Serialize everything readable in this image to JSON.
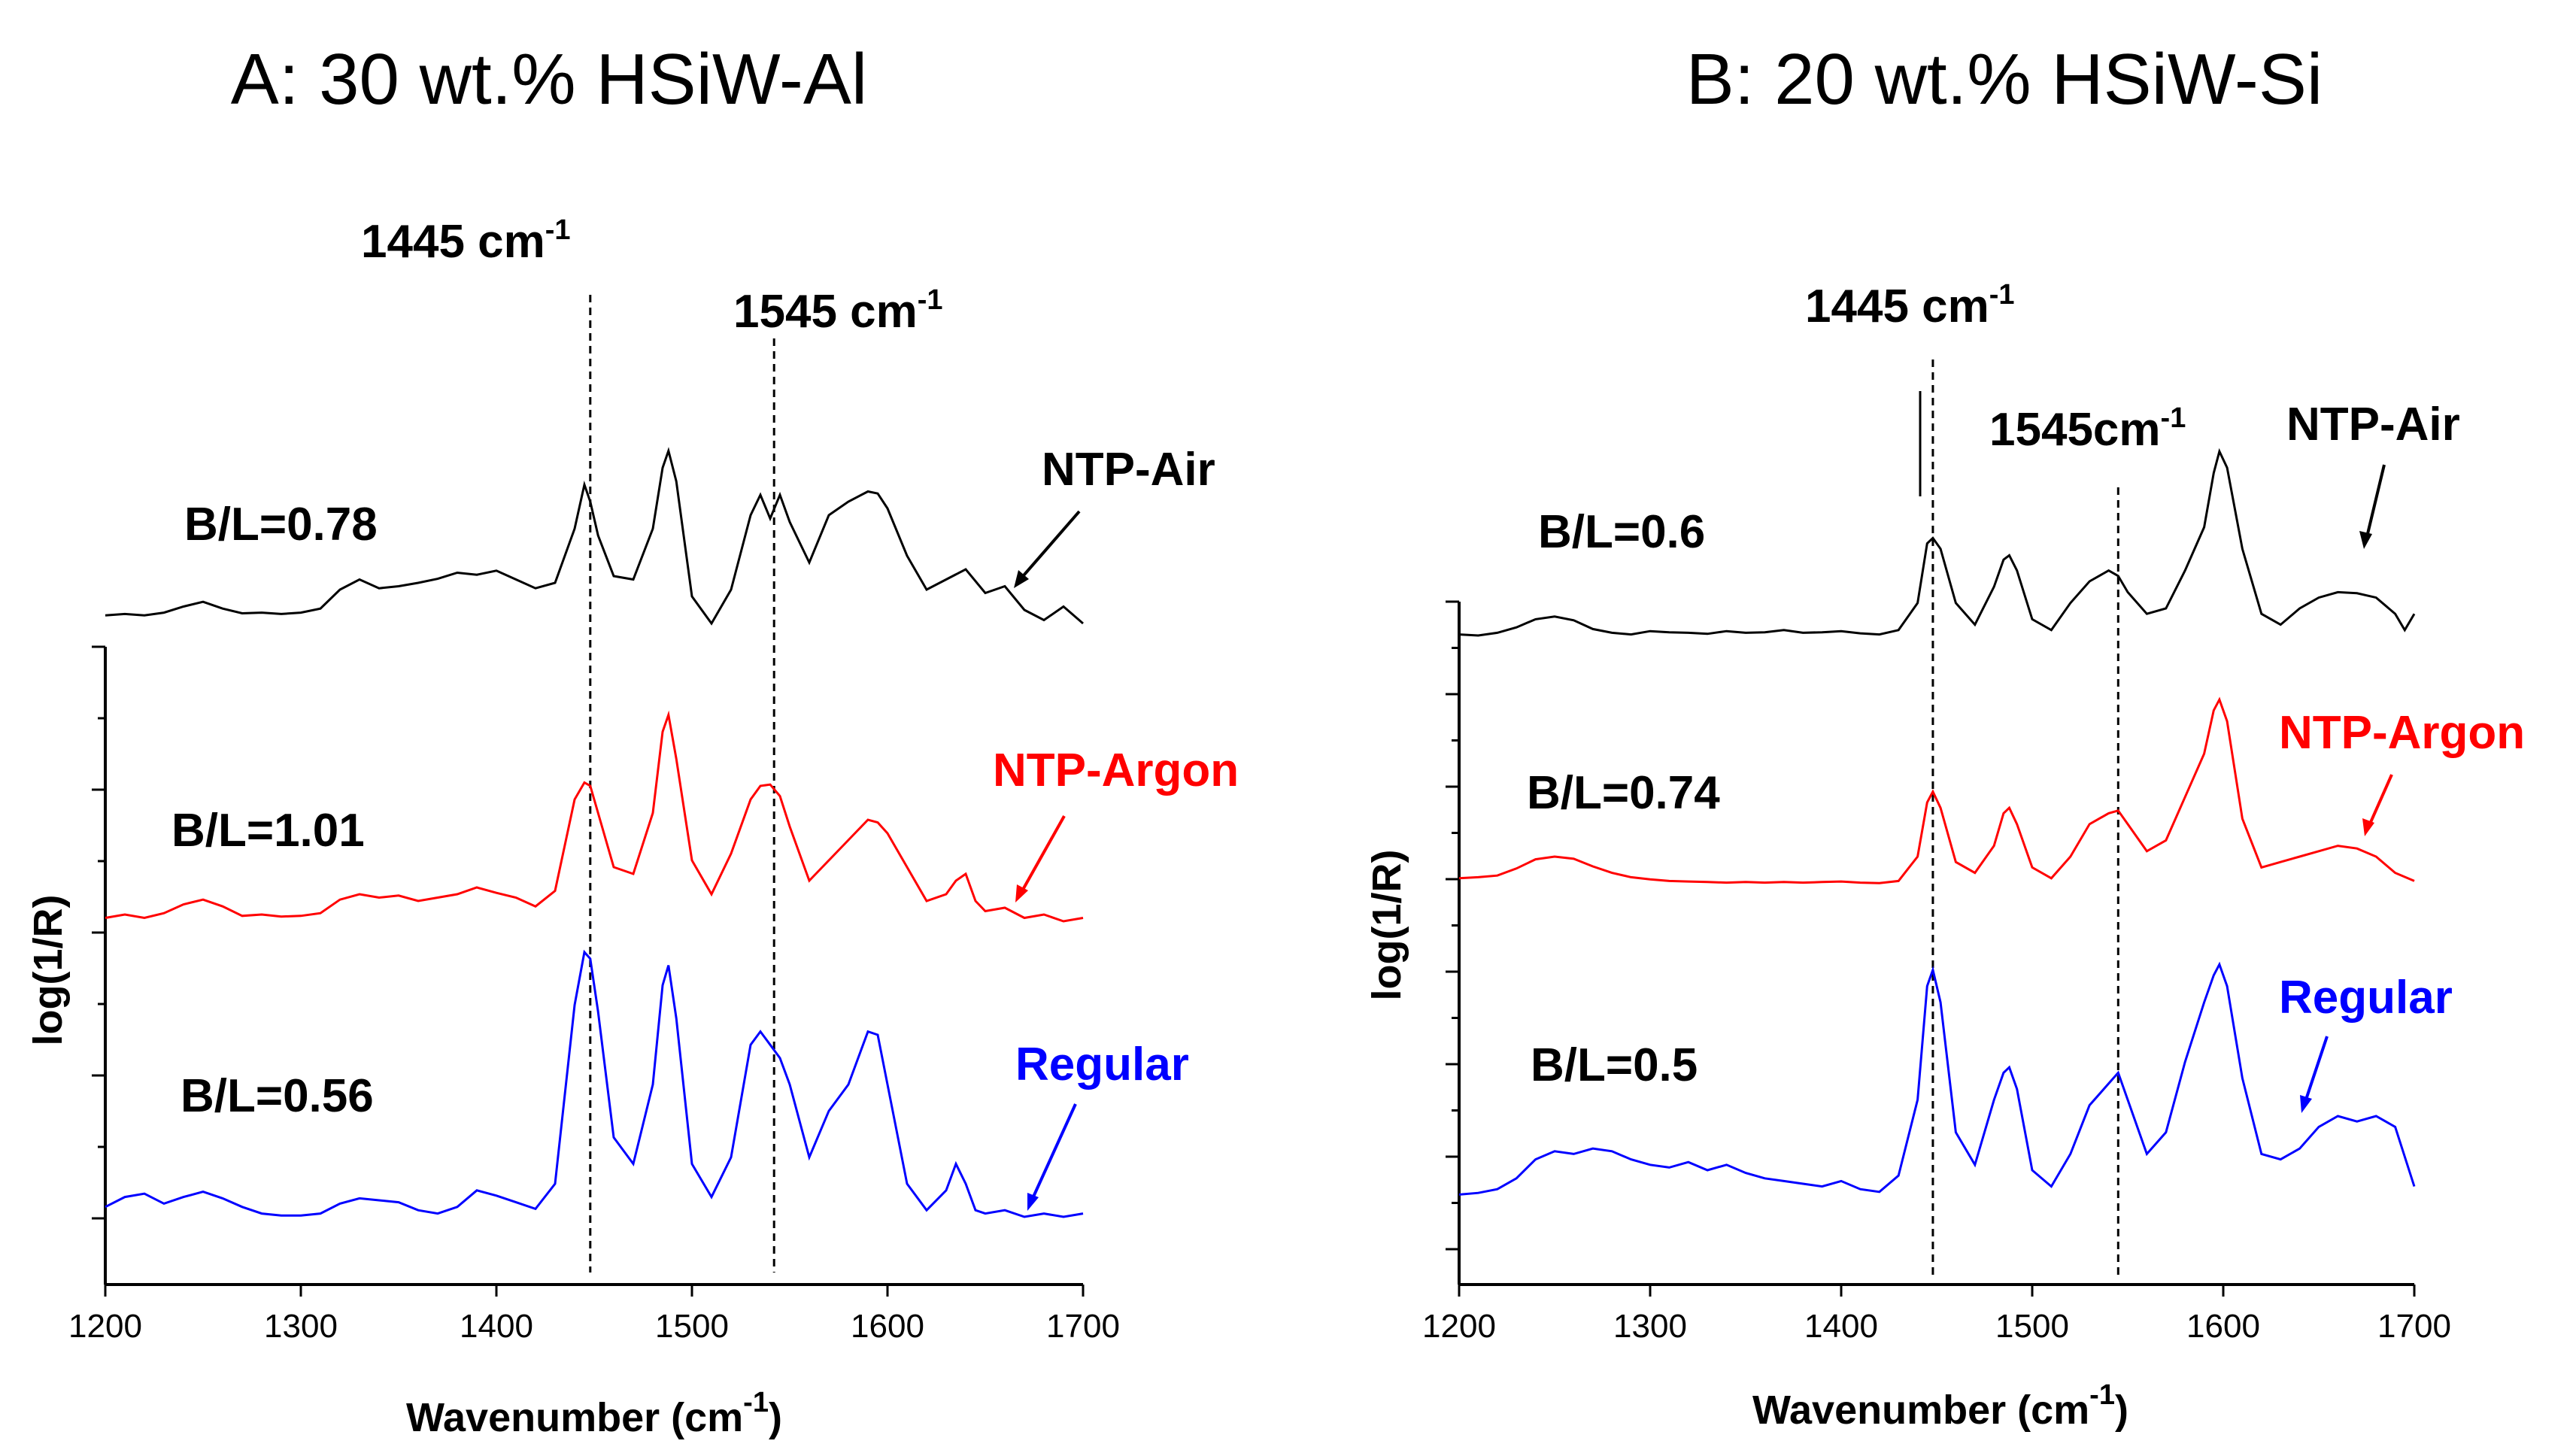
{
  "chart_data": [
    {
      "type": "line",
      "title": "A: 30 wt.% HSiW-Al",
      "xlabel": "Wavenumber (cm",
      "xlabel_sup": "-1",
      "xlabel_end": ")",
      "ylabel": "log(1/R)",
      "xlim": [
        1200,
        1700
      ],
      "xticks": [
        "1200",
        "1300",
        "1400",
        "1500",
        "1600",
        "1700"
      ],
      "peaks": [
        {
          "x": 1448,
          "label": "1445 cm",
          "sup": "-1"
        },
        {
          "x": 1542,
          "label": "1545 cm",
          "sup": "-1"
        }
      ],
      "series": [
        {
          "name": "NTP-Air",
          "color": "#000000",
          "bl": "B/L=0.78",
          "x": [
            1200,
            1210,
            1220,
            1230,
            1240,
            1250,
            1260,
            1270,
            1280,
            1290,
            1300,
            1310,
            1320,
            1330,
            1340,
            1350,
            1360,
            1370,
            1380,
            1390,
            1400,
            1410,
            1420,
            1430,
            1440,
            1445,
            1448,
            1452,
            1460,
            1470,
            1480,
            1485,
            1488,
            1492,
            1500,
            1510,
            1520,
            1530,
            1535,
            1540,
            1545,
            1550,
            1560,
            1570,
            1580,
            1590,
            1595,
            1600,
            1610,
            1620,
            1630,
            1640,
            1650,
            1660,
            1670,
            1680,
            1690,
            1700
          ],
          "values": [
            0.02,
            0.04,
            0.02,
            0.06,
            0.15,
            0.22,
            0.12,
            0.05,
            0.06,
            0.04,
            0.06,
            0.12,
            0.4,
            0.55,
            0.42,
            0.45,
            0.5,
            0.56,
            0.65,
            0.62,
            0.68,
            0.55,
            0.42,
            0.5,
            1.3,
            1.95,
            1.7,
            1.2,
            0.6,
            0.55,
            1.3,
            2.2,
            2.45,
            2.0,
            0.3,
            -0.1,
            0.4,
            1.5,
            1.8,
            1.45,
            1.8,
            1.4,
            0.8,
            1.5,
            1.7,
            1.85,
            1.82,
            1.6,
            0.9,
            0.4,
            0.55,
            0.7,
            0.35,
            0.45,
            0.1,
            -0.05,
            0.15,
            -0.1
          ]
        },
        {
          "name": "NTP-Argon",
          "color": "#ff0000",
          "bl": "B/L=1.01",
          "x": [
            1200,
            1210,
            1220,
            1230,
            1240,
            1250,
            1260,
            1270,
            1280,
            1290,
            1300,
            1310,
            1320,
            1330,
            1340,
            1350,
            1360,
            1370,
            1380,
            1390,
            1400,
            1410,
            1420,
            1430,
            1440,
            1445,
            1448,
            1452,
            1460,
            1470,
            1480,
            1485,
            1488,
            1492,
            1500,
            1510,
            1520,
            1530,
            1535,
            1540,
            1545,
            1550,
            1560,
            1570,
            1580,
            1590,
            1595,
            1600,
            1610,
            1620,
            1630,
            1635,
            1640,
            1645,
            1650,
            1660,
            1670,
            1680,
            1690,
            1700
          ],
          "values": [
            0.05,
            0.1,
            0.05,
            0.12,
            0.25,
            0.32,
            0.22,
            0.08,
            0.1,
            0.07,
            0.08,
            0.12,
            0.32,
            0.4,
            0.35,
            0.38,
            0.3,
            0.35,
            0.4,
            0.5,
            0.42,
            0.35,
            0.22,
            0.45,
            1.8,
            2.05,
            2.0,
            1.6,
            0.8,
            0.7,
            1.6,
            2.8,
            3.05,
            2.4,
            0.9,
            0.4,
            1.0,
            1.8,
            2.0,
            2.02,
            1.85,
            1.4,
            0.6,
            0.9,
            1.2,
            1.5,
            1.46,
            1.3,
            0.8,
            0.3,
            0.4,
            0.6,
            0.7,
            0.3,
            0.15,
            0.2,
            0.05,
            0.1,
            0.0,
            0.05
          ]
        },
        {
          "name": "Regular",
          "color": "#0000ff",
          "bl": "B/L=0.56",
          "x": [
            1200,
            1210,
            1220,
            1230,
            1240,
            1250,
            1260,
            1270,
            1280,
            1290,
            1300,
            1310,
            1320,
            1330,
            1340,
            1350,
            1360,
            1370,
            1380,
            1390,
            1400,
            1410,
            1420,
            1430,
            1440,
            1445,
            1448,
            1452,
            1460,
            1470,
            1480,
            1485,
            1488,
            1492,
            1500,
            1510,
            1520,
            1530,
            1535,
            1540,
            1545,
            1550,
            1560,
            1570,
            1580,
            1590,
            1595,
            1600,
            1610,
            1620,
            1630,
            1635,
            1640,
            1645,
            1650,
            1660,
            1670,
            1680,
            1690,
            1700
          ],
          "values": [
            0.15,
            0.3,
            0.35,
            0.2,
            0.3,
            0.38,
            0.28,
            0.15,
            0.05,
            0.02,
            0.02,
            0.05,
            0.2,
            0.28,
            0.25,
            0.22,
            0.1,
            0.05,
            0.15,
            0.4,
            0.32,
            0.22,
            0.12,
            0.5,
            3.2,
            4.0,
            3.9,
            3.1,
            1.2,
            0.8,
            2.0,
            3.5,
            3.8,
            3.0,
            0.8,
            0.3,
            0.9,
            2.6,
            2.8,
            2.6,
            2.4,
            2.0,
            0.9,
            1.6,
            2.0,
            2.8,
            2.75,
            2.0,
            0.5,
            0.1,
            0.4,
            0.8,
            0.5,
            0.1,
            0.05,
            0.1,
            0.0,
            0.05,
            0.0,
            0.05
          ]
        }
      ],
      "arrows": [
        "NTP-Air",
        "NTP-Argon",
        "Regular"
      ]
    },
    {
      "type": "line",
      "title": "B: 20 wt.% HSiW-Si",
      "xlabel": "Wavenumber (cm",
      "xlabel_sup": "-1",
      "xlabel_end": ")",
      "ylabel": "log(1/R)",
      "xlim": [
        1200,
        1700
      ],
      "xticks": [
        "1200",
        "1300",
        "1400",
        "1500",
        "1600",
        "1700"
      ],
      "peaks": [
        {
          "x": 1448,
          "label": "1445 cm",
          "sup": "-1"
        },
        {
          "x": 1545,
          "label": "1545cm",
          "sup": "-1"
        }
      ],
      "series": [
        {
          "name": "NTP-Air",
          "color": "#000000",
          "bl": "B/L=0.6",
          "x": [
            1200,
            1210,
            1220,
            1230,
            1240,
            1250,
            1260,
            1270,
            1280,
            1290,
            1300,
            1310,
            1320,
            1330,
            1340,
            1350,
            1360,
            1370,
            1380,
            1390,
            1400,
            1410,
            1420,
            1430,
            1440,
            1445,
            1448,
            1452,
            1460,
            1470,
            1480,
            1485,
            1488,
            1492,
            1500,
            1510,
            1520,
            1530,
            1540,
            1545,
            1550,
            1560,
            1570,
            1580,
            1590,
            1595,
            1598,
            1602,
            1610,
            1620,
            1630,
            1640,
            1650,
            1660,
            1670,
            1680,
            1690,
            1695,
            1700
          ],
          "values": [
            0.02,
            0.0,
            0.05,
            0.15,
            0.3,
            0.35,
            0.28,
            0.12,
            0.05,
            0.02,
            0.08,
            0.06,
            0.05,
            0.03,
            0.08,
            0.05,
            0.06,
            0.1,
            0.05,
            0.06,
            0.08,
            0.04,
            0.02,
            0.1,
            0.6,
            1.7,
            1.8,
            1.6,
            0.6,
            0.2,
            0.9,
            1.4,
            1.48,
            1.2,
            0.3,
            0.1,
            0.6,
            1.0,
            1.2,
            1.1,
            0.8,
            0.4,
            0.5,
            1.2,
            2.0,
            3.0,
            3.4,
            3.1,
            1.6,
            0.4,
            0.2,
            0.5,
            0.7,
            0.8,
            0.78,
            0.7,
            0.4,
            0.1,
            0.4
          ]
        },
        {
          "name": "NTP-Argon",
          "color": "#ff0000",
          "bl": "B/L=0.74",
          "x": [
            1200,
            1210,
            1220,
            1230,
            1240,
            1250,
            1260,
            1270,
            1280,
            1290,
            1300,
            1310,
            1320,
            1330,
            1340,
            1350,
            1360,
            1370,
            1380,
            1390,
            1400,
            1410,
            1420,
            1430,
            1440,
            1445,
            1448,
            1452,
            1460,
            1470,
            1480,
            1485,
            1488,
            1492,
            1500,
            1510,
            1520,
            1530,
            1540,
            1545,
            1550,
            1560,
            1570,
            1580,
            1590,
            1595,
            1598,
            1602,
            1610,
            1620,
            1630,
            1640,
            1650,
            1660,
            1670,
            1680,
            1690,
            1700
          ],
          "values": [
            0.1,
            0.12,
            0.15,
            0.28,
            0.45,
            0.5,
            0.46,
            0.32,
            0.2,
            0.12,
            0.08,
            0.05,
            0.04,
            0.03,
            0.02,
            0.03,
            0.02,
            0.03,
            0.02,
            0.03,
            0.04,
            0.02,
            0.01,
            0.05,
            0.5,
            1.5,
            1.7,
            1.4,
            0.4,
            0.2,
            0.7,
            1.3,
            1.4,
            1.1,
            0.3,
            0.1,
            0.5,
            1.1,
            1.3,
            1.35,
            1.1,
            0.6,
            0.8,
            1.6,
            2.4,
            3.2,
            3.4,
            3.0,
            1.2,
            0.3,
            0.4,
            0.5,
            0.6,
            0.7,
            0.65,
            0.5,
            0.2,
            0.05
          ]
        },
        {
          "name": "Regular",
          "color": "#0000ff",
          "bl": "B/L=0.5",
          "x": [
            1200,
            1210,
            1220,
            1230,
            1240,
            1250,
            1260,
            1270,
            1280,
            1290,
            1300,
            1310,
            1320,
            1330,
            1340,
            1350,
            1360,
            1370,
            1380,
            1390,
            1400,
            1410,
            1420,
            1430,
            1440,
            1445,
            1448,
            1452,
            1460,
            1470,
            1480,
            1485,
            1488,
            1492,
            1500,
            1510,
            1520,
            1530,
            1540,
            1545,
            1550,
            1560,
            1570,
            1580,
            1590,
            1595,
            1598,
            1602,
            1610,
            1620,
            1630,
            1640,
            1650,
            1660,
            1670,
            1680,
            1690,
            1700
          ],
          "values": [
            0.05,
            0.08,
            0.15,
            0.35,
            0.7,
            0.85,
            0.8,
            0.9,
            0.85,
            0.7,
            0.6,
            0.55,
            0.65,
            0.5,
            0.6,
            0.45,
            0.35,
            0.3,
            0.25,
            0.2,
            0.3,
            0.15,
            0.1,
            0.4,
            1.8,
            3.9,
            4.2,
            3.6,
            1.2,
            0.6,
            1.8,
            2.3,
            2.4,
            2.0,
            0.5,
            0.2,
            0.8,
            1.7,
            2.1,
            2.3,
            1.8,
            0.8,
            1.2,
            2.5,
            3.6,
            4.1,
            4.3,
            3.9,
            2.2,
            0.8,
            0.7,
            0.9,
            1.3,
            1.5,
            1.4,
            1.5,
            1.3,
            0.2
          ]
        }
      ],
      "arrows": [
        "NTP-Air",
        "NTP-Argon",
        "Regular"
      ]
    }
  ]
}
